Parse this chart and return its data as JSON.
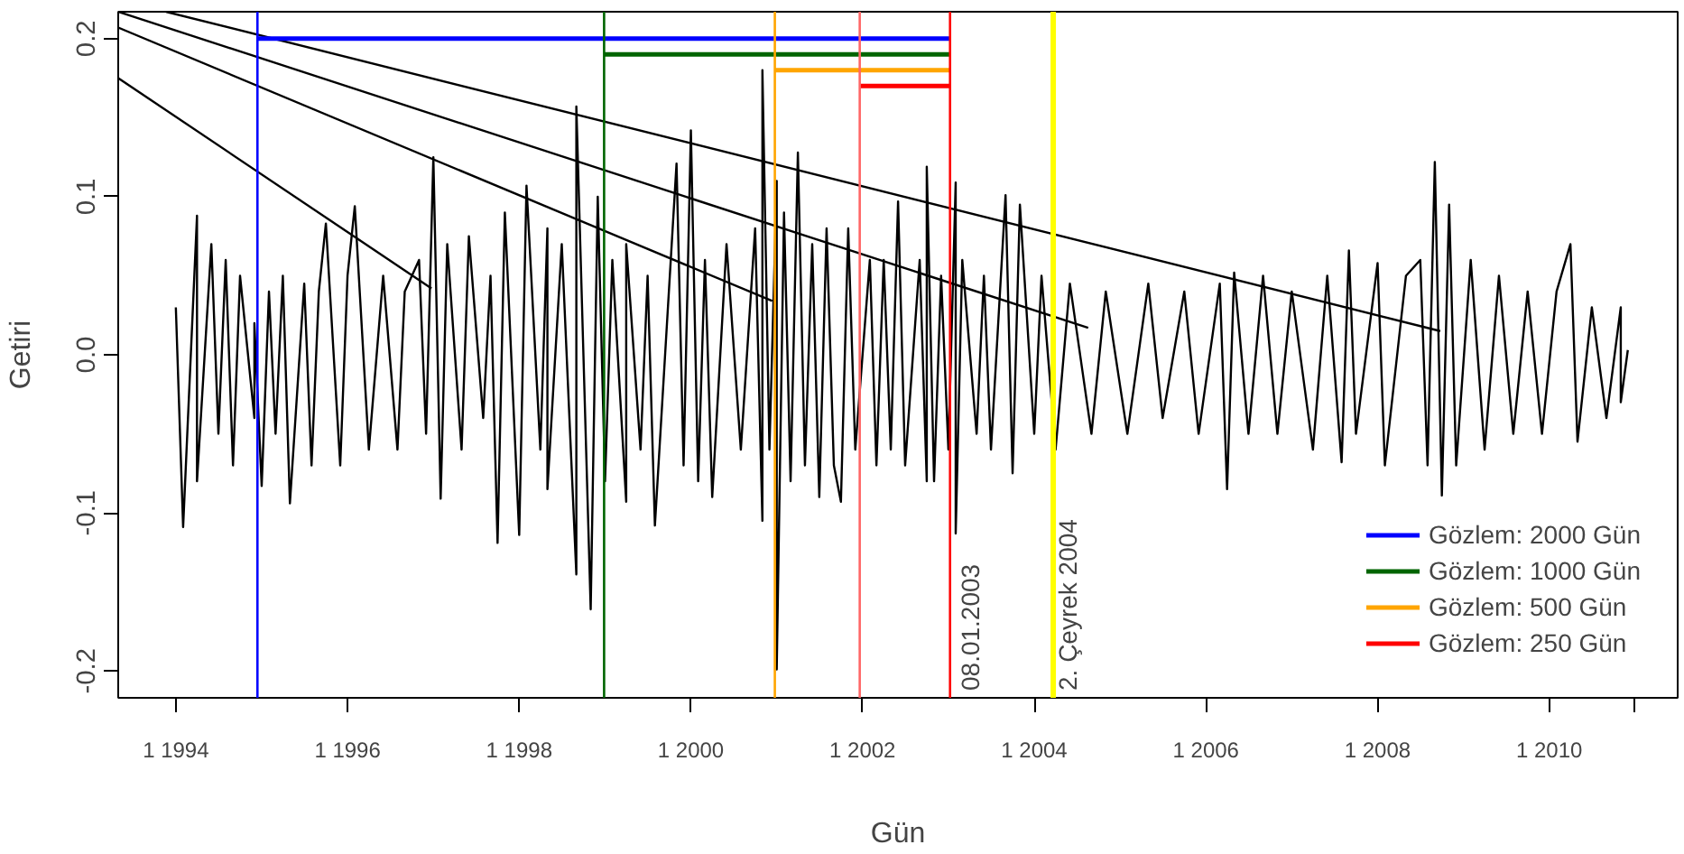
{
  "chart_data": {
    "type": "line",
    "xlabel": "Gün",
    "ylabel": "Getiri",
    "xlim": [
      "1993-05-01",
      "2011-07-01"
    ],
    "ylim": [
      -0.217,
      0.217
    ],
    "xticks": [
      {
        "value": "1994-01-01",
        "label": "1 1994"
      },
      {
        "value": "1996-01-01",
        "label": "1 1996"
      },
      {
        "value": "1998-01-01",
        "label": "1 1998"
      },
      {
        "value": "2000-01-01",
        "label": "1 2000"
      },
      {
        "value": "2002-01-01",
        "label": "1 2002"
      },
      {
        "value": "2004-01-01",
        "label": "1 2004"
      },
      {
        "value": "2006-01-01",
        "label": "1 2006"
      },
      {
        "value": "2008-01-01",
        "label": "1 2008"
      },
      {
        "value": "2010-01-01",
        "label": "1 2010"
      },
      {
        "value": "2011-01-01",
        "label": null
      }
    ],
    "yticks": [
      -0.2,
      -0.1,
      {
        "value": 0,
        "label": "0.0"
      },
      0.1,
      0.2
    ],
    "grid": false,
    "legend": "bottom right",
    "marker": "none",
    "line_style": "solid",
    "series": [
      {
        "color": "#000000",
        "x": [
          "1994-01",
          "1994-02",
          "1994-04",
          "1994-04",
          "1994-06",
          "1994-07",
          "1994-08",
          "1994-09",
          "1994-10",
          "1994-12",
          "1994-12",
          "1995-01",
          "1995-02",
          "1995-03",
          "1995-04",
          "1995-05",
          "1995-07",
          "1995-08",
          "1995-09",
          "1995-10",
          "1995-12",
          "1996-01",
          "1996-02",
          "1996-04",
          "1996-06",
          "1996-08",
          "1996-09",
          "1996-11",
          "1996-12",
          "1997-01",
          "1997-02",
          "1997-03",
          "1997-05",
          "1997-06",
          "1997-08",
          "1997-09",
          "1997-10",
          "1997-11",
          "1998-01",
          "1998-02",
          "1998-04",
          "1998-05",
          "1998-05",
          "1998-07",
          "1998-09",
          "1998-09",
          "1998-11",
          "1998-12",
          "1999-01",
          "1999-02",
          "1999-04",
          "1999-04",
          "1999-06",
          "1999-07",
          "1999-08",
          "1999-11",
          "1999-12",
          "2000-01",
          "2000-02",
          "2000-03",
          "2000-04",
          "2000-06",
          "2000-08",
          "2000-10",
          "2000-11",
          "2000-11",
          "2000-12",
          "2001-01",
          "2001-01",
          "2001-02",
          "2001-03",
          "2001-04",
          "2001-05",
          "2001-06",
          "2001-07",
          "2001-08",
          "2001-09",
          "2001-10",
          "2001-11",
          "2001-12",
          "2002-02",
          "2002-03",
          "2002-04",
          "2002-05",
          "2002-06",
          "2002-07",
          "2002-09",
          "2002-10",
          "2002-10",
          "2002-11",
          "2002-12",
          "2003-01",
          "2003-02",
          "2003-02",
          "2003-03",
          "2003-05",
          "2003-06",
          "2003-07",
          "2003-09",
          "2003-10",
          "2003-11",
          "2004-01",
          "2004-02",
          "2004-04",
          "2004-06",
          "2004-09",
          "2004-11",
          "2005-02",
          "2005-05",
          "2005-07",
          "2005-10",
          "2005-12",
          "2006-03",
          "2006-04",
          "2006-05",
          "2006-07",
          "2006-09",
          "2006-11",
          "2007-01",
          "2007-04",
          "2007-06",
          "2007-08",
          "2007-09",
          "2007-10",
          "2008-01",
          "2008-02",
          "2008-05",
          "2008-07",
          "2008-08",
          "2008-09",
          "2008-10",
          "2008-11",
          "2008-12",
          "2009-02",
          "2009-04",
          "2009-06",
          "2009-08",
          "2009-10",
          "2009-12",
          "2010-02",
          "2010-04",
          "2010-05",
          "2010-07",
          "2010-09",
          "2010-11",
          "2010-11",
          "2010-12"
        ],
        "values": [
          0.03,
          -0.109,
          0.088,
          -0.08,
          0.07,
          -0.05,
          0.06,
          -0.07,
          0.05,
          -0.04,
          0.02,
          -0.083,
          0.04,
          -0.05,
          0.05,
          -0.094,
          0.045,
          -0.07,
          0.04,
          0.083,
          -0.07,
          0.05,
          0.094,
          -0.06,
          0.05,
          -0.06,
          0.04,
          0.06,
          -0.05,
          0.125,
          -0.091,
          0.07,
          -0.06,
          0.075,
          -0.04,
          0.05,
          -0.119,
          0.09,
          -0.114,
          0.107,
          -0.06,
          0.08,
          -0.085,
          0.07,
          -0.139,
          0.157,
          -0.161,
          0.1,
          -0.08,
          0.06,
          -0.093,
          0.07,
          -0.06,
          0.05,
          -0.108,
          0.121,
          -0.07,
          0.142,
          -0.08,
          0.06,
          -0.09,
          0.07,
          -0.06,
          0.08,
          -0.105,
          0.18,
          -0.06,
          0.11,
          -0.199,
          0.09,
          -0.08,
          0.128,
          -0.07,
          0.07,
          -0.09,
          0.08,
          -0.07,
          -0.093,
          0.08,
          -0.06,
          0.06,
          -0.07,
          0.06,
          -0.06,
          0.097,
          -0.07,
          0.06,
          -0.08,
          0.119,
          -0.08,
          0.05,
          -0.06,
          0.109,
          -0.113,
          0.06,
          -0.05,
          0.05,
          -0.06,
          0.101,
          -0.075,
          0.095,
          -0.05,
          0.05,
          -0.06,
          0.045,
          -0.05,
          0.04,
          -0.05,
          0.045,
          -0.04,
          0.04,
          -0.05,
          0.045,
          -0.085,
          0.052,
          -0.05,
          0.05,
          -0.05,
          0.04,
          -0.06,
          0.05,
          -0.068,
          0.066,
          -0.05,
          0.058,
          -0.07,
          0.05,
          0.06,
          -0.07,
          0.122,
          -0.089,
          0.095,
          -0.07,
          0.06,
          -0.06,
          0.05,
          -0.05,
          0.04,
          -0.05,
          0.04,
          0.07,
          -0.055,
          0.03,
          -0.04,
          0.03,
          -0.03,
          0.003
        ]
      },
      {
        "color": "#000000",
        "x": [
          "1993-11-20",
          "2008-09-24"
        ],
        "values": [
          0.217,
          0.015
        ]
      },
      {
        "color": "#000000",
        "x": [
          "1993-05-01",
          "2004-08-18"
        ],
        "values": [
          0.217,
          0.017
        ]
      },
      {
        "color": "#000000",
        "x": [
          "1993-05-01",
          "2000-12-13"
        ],
        "values": [
          0.207,
          0.034
        ]
      },
      {
        "color": "#000000",
        "x": [
          "1993-05-01",
          "1996-12-24"
        ],
        "values": [
          0.175,
          0.042
        ]
      },
      {
        "name": "Gözlem: 2000 Gün",
        "color": "#0000ff",
        "x": [
          "1994-12-14",
          "2003-01-08"
        ],
        "values": [
          0.2,
          0.2
        ]
      },
      {
        "name": "Gözlem: 1000 Gün",
        "color": "#006400",
        "x": [
          "1998-12-28",
          "2003-01-08"
        ],
        "values": [
          0.19,
          0.19
        ]
      },
      {
        "name": "Gözlem: 500 Gün",
        "color": "#ffa500",
        "x": [
          "2000-12-24",
          "2003-01-08"
        ],
        "values": [
          0.18,
          0.18
        ]
      },
      {
        "name": "Gözlem: 250 Gün",
        "color": "#ff0000",
        "x": [
          "2001-12-20",
          "2003-01-08"
        ],
        "values": [
          0.17,
          0.17
        ]
      }
    ],
    "ref_lines": [
      {
        "axis": "x",
        "value": "1994-12-14",
        "color": "#0000ff"
      },
      {
        "axis": "x",
        "value": "1998-12-28",
        "color": "#006400"
      },
      {
        "axis": "x",
        "value": "2000-12-24",
        "color": "#ffa500"
      },
      {
        "axis": "x",
        "value": "2001-12-20",
        "color": "#ff6666"
      },
      {
        "axis": "x",
        "value": "2003-01-08",
        "color": "#ff0000",
        "label": "08.01.2003"
      },
      {
        "axis": "x",
        "value": "2004-03-22",
        "color": "#ffff00",
        "label": "2. Çeyrek 2004"
      }
    ]
  }
}
